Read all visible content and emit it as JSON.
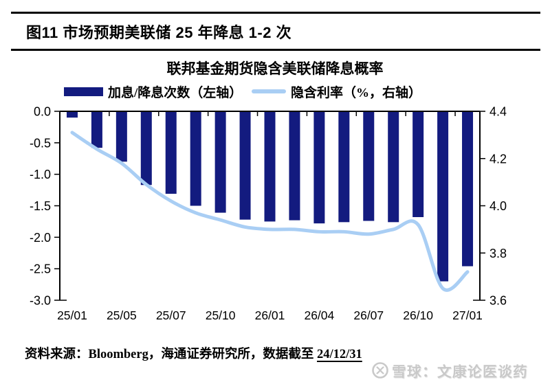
{
  "page": {
    "title": "图11 市场预期美联储 25 年降息 1-2 次",
    "footer": {
      "source_text": "资料来源：Bloomberg，海通证券研究所，数据截至 ",
      "data_cutoff_date": "24/12/31"
    },
    "watermark": {
      "text": "雪球：文康论医谈药"
    }
  },
  "colors": {
    "bar": "#131b7f",
    "line": "#a9cef4",
    "axis": "#000000",
    "watermark": "#c9c9c9"
  },
  "chart_data": {
    "type": "bar+line",
    "title": "联邦基金期货隐含美联储降息概率",
    "legend": [
      {
        "label": "加息/降息次数（左轴）",
        "marker": "bar",
        "color": "#131b7f"
      },
      {
        "label": "隐含利率（%，右轴）",
        "marker": "line",
        "color": "#a9cef4"
      }
    ],
    "x_tick_labels": [
      "25/01",
      "25/05",
      "25/07",
      "25/10",
      "26/01",
      "26/04",
      "26/07",
      "26/10",
      "27/01"
    ],
    "x_tick_bar_indices": [
      0,
      2,
      4,
      6,
      8,
      10,
      12,
      14,
      16
    ],
    "series": [
      {
        "name": "加息/降息次数（左轴）",
        "type": "bar",
        "axis": "left",
        "values": [
          -0.1,
          -0.58,
          -0.8,
          -1.17,
          -1.31,
          -1.5,
          -1.61,
          -1.72,
          -1.75,
          -1.73,
          -1.78,
          -1.76,
          -1.74,
          -1.76,
          -1.68,
          -2.7,
          -2.46
        ]
      },
      {
        "name": "隐含利率（%，右轴）",
        "type": "line",
        "axis": "right",
        "values": [
          4.31,
          4.24,
          4.18,
          4.09,
          4.02,
          3.97,
          3.94,
          3.91,
          3.9,
          3.9,
          3.89,
          3.89,
          3.88,
          3.9,
          3.92,
          3.65,
          3.72
        ]
      }
    ],
    "left_axis": {
      "min": -3.0,
      "max": 0.0,
      "tick_labels": [
        "0.0",
        "-0.5",
        "-1.0",
        "-1.5",
        "-2.0",
        "-2.5",
        "-3.0"
      ]
    },
    "right_axis": {
      "min": 3.6,
      "max": 4.4,
      "tick_labels": [
        "4.4",
        "4.2",
        "4.0",
        "3.8",
        "3.6"
      ]
    },
    "grid": false,
    "legend_position": "top"
  }
}
